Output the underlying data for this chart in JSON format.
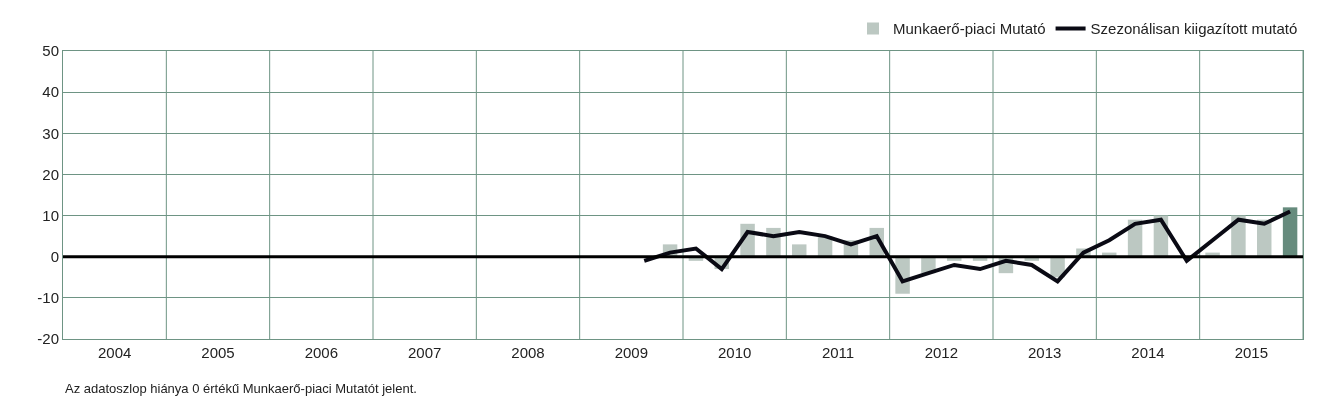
{
  "chart_data": {
    "type": "bar",
    "legend": "top right",
    "grid": true,
    "x": [
      2009.625,
      2009.875,
      2010.125,
      2010.375,
      2010.625,
      2010.875,
      2011.125,
      2011.375,
      2011.625,
      2011.875,
      2012.125,
      2012.375,
      2012.625,
      2012.875,
      2013.125,
      2013.375,
      2013.625,
      2013.875,
      2014.125,
      2014.375,
      2014.625,
      2014.875,
      2015.125,
      2015.375,
      2015.625,
      2015.875
    ],
    "series": [
      {
        "name": "Munkaerő-piaci Mutató",
        "color": "#668b7d",
        "colors": [
          "#bcc8c2",
          "#bcc8c2",
          "#bcc8c2",
          "#bcc8c2",
          "#bcc8c2",
          "#bcc8c2",
          "#bcc8c2",
          "#bcc8c2",
          "#bcc8c2",
          "#bcc8c2",
          "#bcc8c2",
          "#bcc8c2",
          "#bcc8c2",
          "#bcc8c2",
          "#bcc8c2",
          "#bcc8c2",
          "#bcc8c2",
          "#bcc8c2",
          "#bcc8c2",
          "#bcc8c2",
          "#bcc8c2",
          "#bcc8c2",
          "#bcc8c2",
          "#bcc8c2",
          "#bcc8c2",
          "#668b7d"
        ],
        "values": [
          0,
          3,
          -1,
          -3,
          8,
          7,
          3,
          5,
          4,
          7,
          -9,
          -4,
          -1,
          -1,
          -4,
          -1,
          -5,
          2,
          1,
          9,
          10,
          0,
          1,
          10,
          9,
          12
        ]
      },
      {
        "name": "Szezonálisan kiigazított mutató",
        "type": "line",
        "color": "#0a0a14",
        "values": [
          -1,
          1,
          2,
          -3,
          6,
          5,
          6,
          5,
          3,
          5,
          -6,
          -4,
          -2,
          -3,
          -1,
          -2,
          -6,
          1,
          4,
          8,
          9,
          -1,
          4,
          9,
          8,
          11
        ]
      }
    ],
    "xlim": [
      2004,
      2016
    ],
    "xticks": [
      {
        "value": 2004.5,
        "label": "2004"
      },
      {
        "value": 2005,
        "label": null
      },
      {
        "value": 2005.5,
        "label": "2005"
      },
      {
        "value": 2006,
        "label": null
      },
      {
        "value": 2006.5,
        "label": "2006"
      },
      {
        "value": 2007,
        "label": null
      },
      {
        "value": 2007.5,
        "label": "2007"
      },
      {
        "value": 2008,
        "label": null
      },
      {
        "value": 2008.5,
        "label": "2008"
      },
      {
        "value": 2009,
        "label": null
      },
      {
        "value": 2009.5,
        "label": "2009"
      },
      {
        "value": 2010,
        "label": null
      },
      {
        "value": 2010.5,
        "label": "2010"
      },
      {
        "value": 2011,
        "label": null
      },
      {
        "value": 2011.5,
        "label": "2011"
      },
      {
        "value": 2012,
        "label": null
      },
      {
        "value": 2012.5,
        "label": "2012"
      },
      {
        "value": 2013,
        "label": null
      },
      {
        "value": 2013.5,
        "label": "2013"
      },
      {
        "value": 2014,
        "label": null
      },
      {
        "value": 2014.5,
        "label": "2014"
      },
      {
        "value": 2015,
        "label": null
      },
      {
        "value": 2015.5,
        "label": "2015"
      },
      {
        "value": 2016,
        "label": null
      }
    ],
    "ylim": [
      -20,
      50
    ],
    "yticks": [
      -20,
      -10,
      0,
      10,
      20,
      30,
      40,
      50
    ],
    "ref_lines": [
      {
        "axis": "y",
        "value": 0,
        "color": "#000000"
      }
    ],
    "annotations": [
      "Az adatoszlop hiánya 0 értékű Munkaerő-piaci Mutatót jelent."
    ]
  }
}
